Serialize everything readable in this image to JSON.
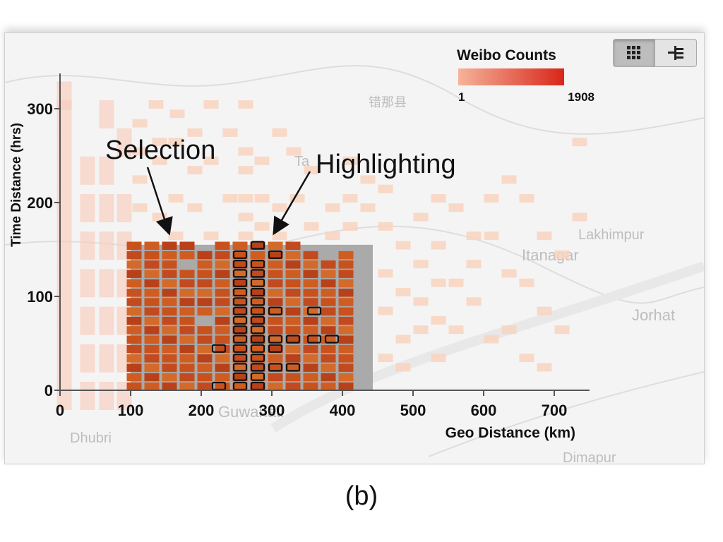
{
  "figure_label": "(b)",
  "toolbar": {
    "grid_icon": "grid-icon",
    "tree_icon": "tree-layout-icon",
    "active": "grid"
  },
  "legend": {
    "title": "Weibo Counts",
    "min_label": "1",
    "max_label": "1908",
    "color_low": "#f6b39a",
    "color_high": "#d8261a"
  },
  "map_labels": [
    "错那县",
    "Ta",
    "Lakhimpur",
    "Itanagar",
    "Jorhat",
    "Guwahati",
    "Dhubri",
    "Dimapur"
  ],
  "annotations": [
    "Selection",
    "Highlighting"
  ],
  "colors": {
    "faded_cell": "#f8d3be",
    "selected_cell": "#cc5a22",
    "selection_bg": "#aaaaaa",
    "highlight_stroke": "#111111"
  },
  "chart_data": {
    "type": "heatmap",
    "xlabel": "Geo Distance (km)",
    "ylabel": "Time Distance (hrs)",
    "xlim": [
      0,
      750
    ],
    "ylim": [
      0,
      330
    ],
    "x_ticks": [
      "0",
      "100",
      "200",
      "300",
      "400",
      "500",
      "600",
      "700"
    ],
    "y_ticks": [
      "0",
      "100",
      "200",
      "300"
    ],
    "x_bin_km": 25,
    "y_bin_hrs": 10,
    "selection": {
      "x": [
        100,
        443
      ],
      "y": [
        0,
        155
      ]
    },
    "highlighted_bins": [
      [
        225,
        0
      ],
      [
        225,
        40
      ],
      [
        255,
        0
      ],
      [
        255,
        10
      ],
      [
        255,
        20
      ],
      [
        255,
        30
      ],
      [
        255,
        40
      ],
      [
        255,
        50
      ],
      [
        255,
        60
      ],
      [
        255,
        70
      ],
      [
        255,
        80
      ],
      [
        255,
        90
      ],
      [
        255,
        100
      ],
      [
        255,
        110
      ],
      [
        255,
        120
      ],
      [
        255,
        130
      ],
      [
        255,
        140
      ],
      [
        280,
        0
      ],
      [
        280,
        10
      ],
      [
        280,
        20
      ],
      [
        280,
        30
      ],
      [
        280,
        40
      ],
      [
        280,
        50
      ],
      [
        280,
        60
      ],
      [
        280,
        70
      ],
      [
        280,
        80
      ],
      [
        280,
        90
      ],
      [
        280,
        100
      ],
      [
        280,
        110
      ],
      [
        280,
        120
      ],
      [
        280,
        130
      ],
      [
        280,
        150
      ],
      [
        305,
        20
      ],
      [
        305,
        40
      ],
      [
        305,
        50
      ],
      [
        305,
        80
      ],
      [
        305,
        140
      ],
      [
        330,
        20
      ],
      [
        330,
        50
      ],
      [
        360,
        50
      ],
      [
        385,
        50
      ],
      [
        360,
        80
      ]
    ],
    "faded_cells": [
      [
        5,
        0
      ],
      [
        5,
        30
      ],
      [
        5,
        60
      ],
      [
        5,
        90
      ],
      [
        5,
        120
      ],
      [
        5,
        150
      ],
      [
        5,
        180
      ],
      [
        5,
        210
      ],
      [
        5,
        240
      ],
      [
        5,
        270
      ],
      [
        5,
        300
      ],
      [
        5,
        320
      ],
      [
        38,
        0
      ],
      [
        38,
        40
      ],
      [
        38,
        80
      ],
      [
        38,
        120
      ],
      [
        38,
        160
      ],
      [
        38,
        200
      ],
      [
        38,
        240
      ],
      [
        65,
        0
      ],
      [
        65,
        40
      ],
      [
        65,
        80
      ],
      [
        65,
        120
      ],
      [
        65,
        160
      ],
      [
        65,
        200
      ],
      [
        65,
        240
      ],
      [
        65,
        300
      ],
      [
        90,
        0
      ],
      [
        90,
        40
      ],
      [
        90,
        80
      ],
      [
        90,
        120
      ],
      [
        90,
        160
      ],
      [
        90,
        200
      ],
      [
        90,
        270
      ],
      [
        112,
        280
      ],
      [
        112,
        250
      ],
      [
        112,
        220
      ],
      [
        112,
        190
      ],
      [
        135,
        300
      ],
      [
        140,
        180
      ],
      [
        140,
        240
      ],
      [
        140,
        260
      ],
      [
        163,
        160
      ],
      [
        163,
        200
      ],
      [
        163,
        260
      ],
      [
        165,
        290
      ],
      [
        190,
        270
      ],
      [
        190,
        230
      ],
      [
        190,
        190
      ],
      [
        213,
        160
      ],
      [
        213,
        240
      ],
      [
        213,
        300
      ],
      [
        240,
        200
      ],
      [
        240,
        270
      ],
      [
        262,
        300
      ],
      [
        262,
        250
      ],
      [
        262,
        230
      ],
      [
        262,
        200
      ],
      [
        262,
        180
      ],
      [
        262,
        160
      ],
      [
        285,
        240
      ],
      [
        285,
        200
      ],
      [
        285,
        170
      ],
      [
        310,
        270
      ],
      [
        310,
        190
      ],
      [
        310,
        160
      ],
      [
        330,
        250
      ],
      [
        335,
        200
      ],
      [
        355,
        230
      ],
      [
        355,
        170
      ],
      [
        385,
        190
      ],
      [
        385,
        160
      ],
      [
        410,
        240
      ],
      [
        410,
        200
      ],
      [
        410,
        170
      ],
      [
        435,
        190
      ],
      [
        435,
        220
      ],
      [
        460,
        210
      ],
      [
        460,
        170
      ],
      [
        460,
        120
      ],
      [
        460,
        80
      ],
      [
        460,
        30
      ],
      [
        485,
        150
      ],
      [
        485,
        100
      ],
      [
        485,
        50
      ],
      [
        485,
        20
      ],
      [
        510,
        130
      ],
      [
        510,
        90
      ],
      [
        510,
        60
      ],
      [
        510,
        180
      ],
      [
        535,
        200
      ],
      [
        535,
        150
      ],
      [
        535,
        110
      ],
      [
        535,
        70
      ],
      [
        535,
        30
      ],
      [
        560,
        190
      ],
      [
        560,
        110
      ],
      [
        560,
        60
      ],
      [
        585,
        160
      ],
      [
        585,
        130
      ],
      [
        585,
        90
      ],
      [
        610,
        200
      ],
      [
        610,
        160
      ],
      [
        610,
        50
      ],
      [
        635,
        220
      ],
      [
        635,
        120
      ],
      [
        635,
        60
      ],
      [
        660,
        200
      ],
      [
        660,
        110
      ],
      [
        660,
        30
      ],
      [
        685,
        160
      ],
      [
        685,
        80
      ],
      [
        685,
        20
      ],
      [
        710,
        140
      ],
      [
        710,
        60
      ],
      [
        735,
        260
      ],
      [
        735,
        180
      ]
    ],
    "selected_columns": [
      {
        "x": 105,
        "y": [
          0,
          10,
          20,
          30,
          40,
          50,
          60,
          70,
          80,
          90,
          100,
          110,
          120,
          130,
          140,
          150
        ]
      },
      {
        "x": 130,
        "y": [
          0,
          10,
          20,
          30,
          40,
          50,
          60,
          70,
          80,
          90,
          100,
          110,
          120,
          130,
          140,
          150
        ]
      },
      {
        "x": 155,
        "y": [
          0,
          10,
          20,
          30,
          40,
          50,
          60,
          70,
          80,
          90,
          100,
          110,
          120,
          130,
          140,
          150
        ]
      },
      {
        "x": 180,
        "y": [
          0,
          10,
          20,
          30,
          40,
          50,
          60,
          70,
          80,
          90,
          100,
          110,
          120,
          140,
          150
        ]
      },
      {
        "x": 205,
        "y": [
          0,
          10,
          20,
          30,
          40,
          50,
          60,
          80,
          90,
          100,
          110,
          120,
          130,
          140
        ]
      },
      {
        "x": 230,
        "y": [
          0,
          10,
          20,
          30,
          40,
          50,
          60,
          70,
          80,
          90,
          100,
          110,
          120,
          130,
          140,
          150
        ]
      },
      {
        "x": 255,
        "y": [
          0,
          10,
          20,
          30,
          40,
          50,
          60,
          70,
          80,
          90,
          100,
          110,
          120,
          130,
          140,
          150
        ]
      },
      {
        "x": 280,
        "y": [
          0,
          10,
          20,
          30,
          40,
          50,
          60,
          70,
          80,
          90,
          100,
          110,
          120,
          130,
          140,
          150
        ]
      },
      {
        "x": 305,
        "y": [
          0,
          10,
          20,
          30,
          40,
          50,
          60,
          70,
          80,
          90,
          100,
          110,
          120,
          130,
          140,
          150
        ]
      },
      {
        "x": 330,
        "y": [
          0,
          10,
          20,
          30,
          40,
          50,
          60,
          70,
          80,
          90,
          100,
          110,
          120,
          130,
          140,
          150
        ]
      },
      {
        "x": 355,
        "y": [
          0,
          10,
          20,
          30,
          40,
          50,
          60,
          70,
          80,
          90,
          100,
          110,
          120,
          130,
          140
        ]
      },
      {
        "x": 380,
        "y": [
          0,
          10,
          20,
          30,
          40,
          50,
          60,
          70,
          80,
          90,
          100,
          110,
          120,
          130
        ]
      },
      {
        "x": 405,
        "y": [
          0,
          10,
          20,
          30,
          40,
          50,
          60,
          70,
          80,
          90,
          100,
          110,
          120,
          130,
          140
        ]
      }
    ]
  }
}
